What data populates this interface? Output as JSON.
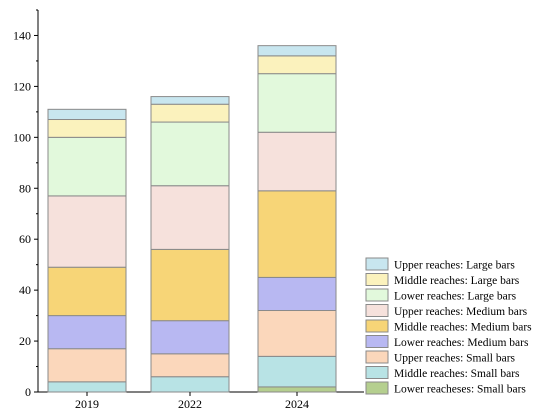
{
  "chart_data": {
    "type": "bar",
    "stacked": true,
    "title": "",
    "xlabel": "",
    "ylabel": "",
    "categories": [
      "2019",
      "2022",
      "2024"
    ],
    "ylim": [
      0,
      150
    ],
    "yticks": [
      0,
      20,
      40,
      60,
      80,
      100,
      120,
      140
    ],
    "grid": false,
    "legend": "right-bottom",
    "series": [
      {
        "name": "Lower reacheses: Small bars",
        "color": "#b5cf8f",
        "values": [
          0,
          0,
          2
        ]
      },
      {
        "name": "Middle reaches: Small bars",
        "color": "#b8e3e5",
        "values": [
          4,
          6,
          12
        ]
      },
      {
        "name": "Upper reaches: Small bars",
        "color": "#fbd7bb",
        "values": [
          13,
          9,
          18
        ]
      },
      {
        "name": "Lower reaches: Medium bars",
        "color": "#b8b8f2",
        "values": [
          13,
          13,
          13
        ]
      },
      {
        "name": "Middle reaches: Medium bars",
        "color": "#f7d577",
        "values": [
          19,
          28,
          34
        ]
      },
      {
        "name": "Upper reaches: Medium bars",
        "color": "#f6e1dc",
        "values": [
          28,
          25,
          23
        ]
      },
      {
        "name": "Lower reaches: Large bars",
        "color": "#e2f9dc",
        "values": [
          23,
          25,
          23
        ]
      },
      {
        "name": "Middle reaches: Large bars",
        "color": "#fbf2bd",
        "values": [
          7,
          7,
          7
        ]
      },
      {
        "name": "Upper reaches: Large bars",
        "color": "#c8e6ef",
        "values": [
          4,
          3,
          4
        ]
      }
    ]
  }
}
